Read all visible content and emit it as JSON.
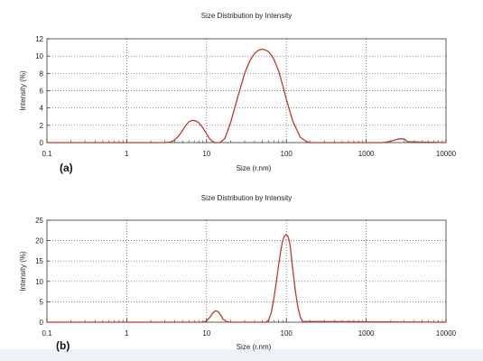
{
  "chart_data": [
    {
      "type": "line",
      "panel_label": "(a)",
      "title": "Size Distribution by Intensity",
      "xlabel": "Size (r.nm)",
      "ylabel": "Intensity (%)",
      "xscale": "log",
      "xlim": [
        0.1,
        10000
      ],
      "ylim": [
        0,
        12
      ],
      "xticks": [
        "0.1",
        "1",
        "10",
        "100",
        "1000",
        "10000"
      ],
      "yticks": [
        "0",
        "2",
        "4",
        "6",
        "8",
        "10",
        "12"
      ],
      "grid": true,
      "series": [
        {
          "color": "#c0392b",
          "x": [
            0.1,
            3.0,
            3.5,
            4.0,
            4.5,
            5.0,
            5.5,
            6.0,
            6.5,
            7.0,
            7.5,
            8.0,
            9.0,
            10,
            11,
            12,
            13,
            14,
            15,
            17,
            20,
            25,
            30,
            35,
            40,
            45,
            50,
            55,
            60,
            65,
            70,
            80,
            90,
            100,
            120,
            150,
            180,
            200,
            250,
            1600,
            1900,
            2200,
            2500,
            2800,
            3000,
            3300,
            10000
          ],
          "y": [
            0,
            0,
            0.05,
            0.3,
            0.8,
            1.4,
            2.0,
            2.4,
            2.55,
            2.55,
            2.45,
            2.3,
            1.7,
            1.0,
            0.4,
            0.1,
            0,
            0,
            0.05,
            0.5,
            2.3,
            5.5,
            8.0,
            9.5,
            10.3,
            10.7,
            10.8,
            10.7,
            10.5,
            10.1,
            9.6,
            8.3,
            6.6,
            5.0,
            2.5,
            0.6,
            0.1,
            0,
            0,
            0,
            0.1,
            0.25,
            0.4,
            0.45,
            0.4,
            0.1,
            0
          ]
        }
      ]
    },
    {
      "type": "line",
      "panel_label": "(b)",
      "title": "Size Distribution by Intensity",
      "xlabel": "Size (r.nm)",
      "ylabel": "Intensity (%)",
      "xscale": "log",
      "xlim": [
        0.1,
        10000
      ],
      "ylim": [
        0,
        25
      ],
      "xticks": [
        "0.1",
        "1",
        "10",
        "100",
        "1000",
        "10000"
      ],
      "yticks": [
        "0",
        "5",
        "10",
        "15",
        "20",
        "25"
      ],
      "grid": true,
      "series": [
        {
          "color": "#c0392b",
          "x": [
            0.1,
            9.0,
            10,
            11,
            12,
            13,
            14,
            15,
            16,
            18,
            20,
            55,
            60,
            65,
            70,
            75,
            80,
            85,
            90,
            95,
            100,
            105,
            110,
            115,
            120,
            130,
            140,
            150,
            160,
            10000
          ],
          "y": [
            0,
            0,
            0.3,
            1.2,
            2.3,
            2.8,
            2.6,
            1.8,
            0.8,
            0.1,
            0,
            0,
            0.5,
            2.5,
            6.0,
            10.0,
            14.0,
            17.5,
            20.0,
            21.2,
            21.5,
            21.0,
            19.5,
            16.5,
            13.0,
            7.5,
            3.5,
            1.2,
            0.2,
            0
          ]
        }
      ]
    }
  ]
}
